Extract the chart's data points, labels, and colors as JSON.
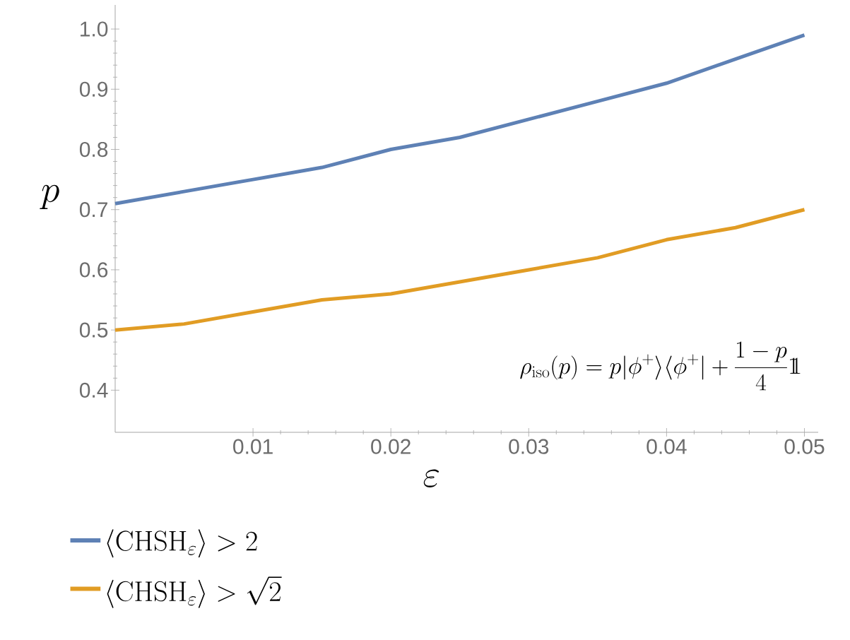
{
  "chart_data": {
    "type": "line",
    "xlabel": "\\varepsilon",
    "ylabel": "p",
    "x": [
      0,
      0.005,
      0.01,
      0.015,
      0.02,
      0.025,
      0.03,
      0.035,
      0.04,
      0.045,
      0.05
    ],
    "series": [
      {
        "name": "\\langle\\mathrm{CHSH}_\\varepsilon\\rangle > 2",
        "color": "#5e81b5",
        "values": [
          0.71,
          0.73,
          0.75,
          0.77,
          0.8,
          0.82,
          0.85,
          0.88,
          0.91,
          0.95,
          0.99
        ]
      },
      {
        "name": "\\langle\\mathrm{CHSH}_\\varepsilon\\rangle > \\sqrt{2}",
        "color": "#e19c24",
        "values": [
          0.5,
          0.51,
          0.53,
          0.55,
          0.56,
          0.58,
          0.6,
          0.62,
          0.65,
          0.67,
          0.7
        ]
      }
    ],
    "annotations": [
      "\\rho_{\\mathrm{iso}}(p) = p|\\phi^+\\rangle\\langle\\phi^+| + \\frac{1-p}{4}1\\!\\!1"
    ],
    "xlim": [
      0,
      0.051
    ],
    "ylim": [
      0.33,
      1.04
    ],
    "xticks": [
      0.01,
      0.02,
      0.03,
      0.04,
      0.05
    ],
    "yticks": [
      0.4,
      0.5,
      0.6,
      0.7,
      0.8,
      0.9,
      {
        "value": 1,
        "label": "1.0"
      }
    ],
    "legend": "bottom",
    "grid": false,
    "marker": "none",
    "line_style": "solid"
  }
}
